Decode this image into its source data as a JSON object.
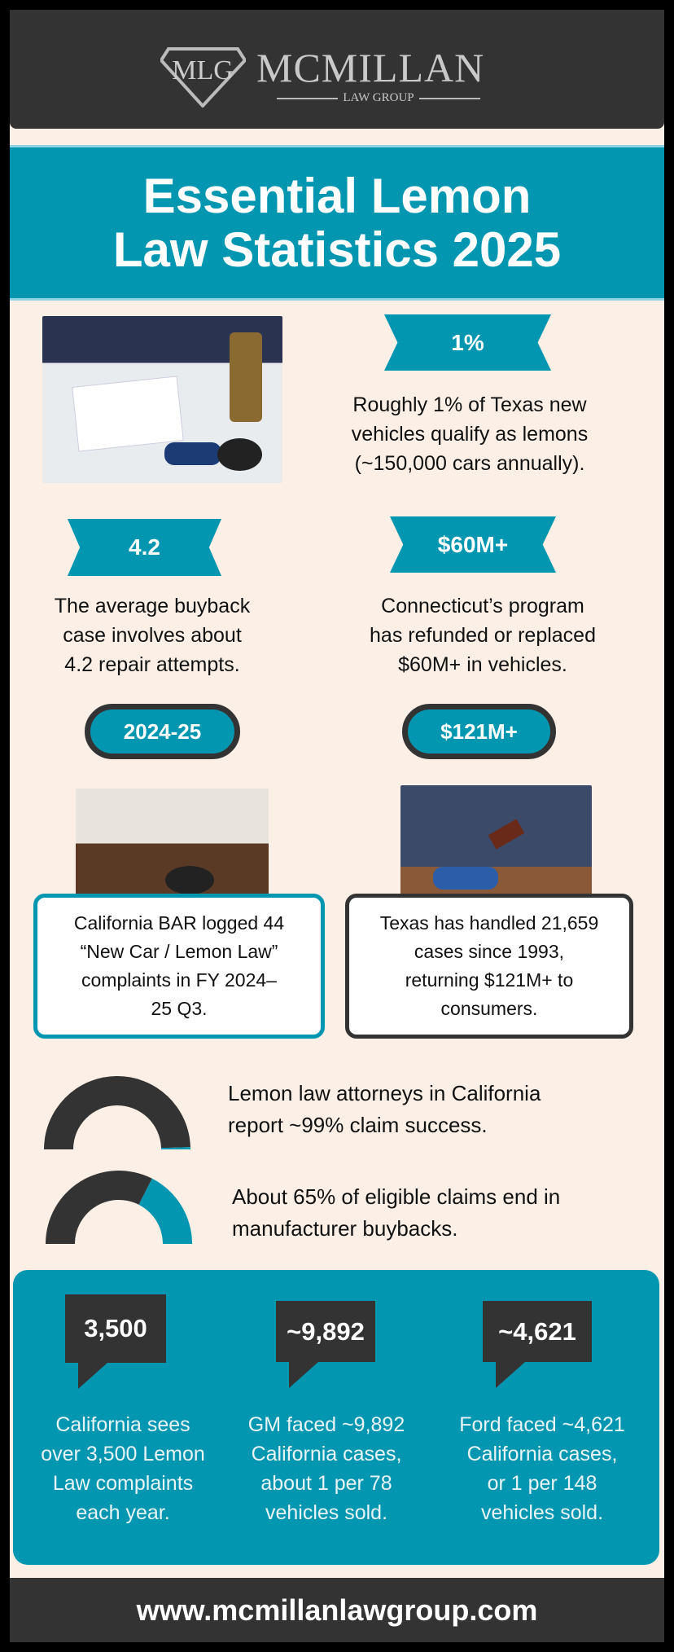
{
  "colors": {
    "teal": "#0396b1",
    "dark": "#333333",
    "cream": "#fcefe5"
  },
  "header": {
    "logo_mark": "MLG",
    "brand": "MCMILLAN",
    "subtitle": "LAW GROUP"
  },
  "title": {
    "line1": "Essential Lemon",
    "line2": "Law Statistics 2025"
  },
  "stats": [
    {
      "badge": "1%",
      "lines": [
        "Roughly 1% of Texas new",
        "vehicles qualify as lemons",
        "(~150,000 cars annually)."
      ]
    },
    {
      "badge": "4.2",
      "lines": [
        "The average buyback",
        "case involves about",
        "4.2 repair attempts."
      ]
    },
    {
      "badge": "$60M+",
      "lines": [
        "Connecticut’s program",
        "has refunded or replaced",
        "$60M+ in vehicles."
      ]
    }
  ],
  "cards": [
    {
      "badge": "2024-25",
      "lines": [
        "California BAR logged 44",
        "“New Car / Lemon Law”",
        "complaints in FY 2024–",
        "25 Q3."
      ]
    },
    {
      "badge": "$121M+",
      "lines": [
        "Texas has handled 21,659",
        "cases since 1993,",
        "returning $121M+ to",
        "consumers."
      ]
    }
  ],
  "gauges": [
    {
      "percent": 99,
      "lines": [
        "Lemon law attorneys in California",
        "report ~99% claim success."
      ]
    },
    {
      "percent": 65,
      "lines": [
        "About 65% of eligible claims end in",
        "manufacturer buybacks."
      ]
    }
  ],
  "callouts": [
    {
      "value": "3,500",
      "lines": [
        "California sees",
        "over 3,500 Lemon",
        "Law complaints",
        "each year."
      ]
    },
    {
      "value": "~9,892",
      "lines": [
        "GM faced ~9,892",
        "California cases,",
        "about 1 per 78",
        "vehicles sold."
      ]
    },
    {
      "value": "~4,621",
      "lines": [
        "Ford faced ~4,621",
        "California cases,",
        "or 1 per 148",
        "vehicles sold."
      ]
    }
  ],
  "footer": {
    "url": "www.mcmillanlawgroup.com"
  }
}
